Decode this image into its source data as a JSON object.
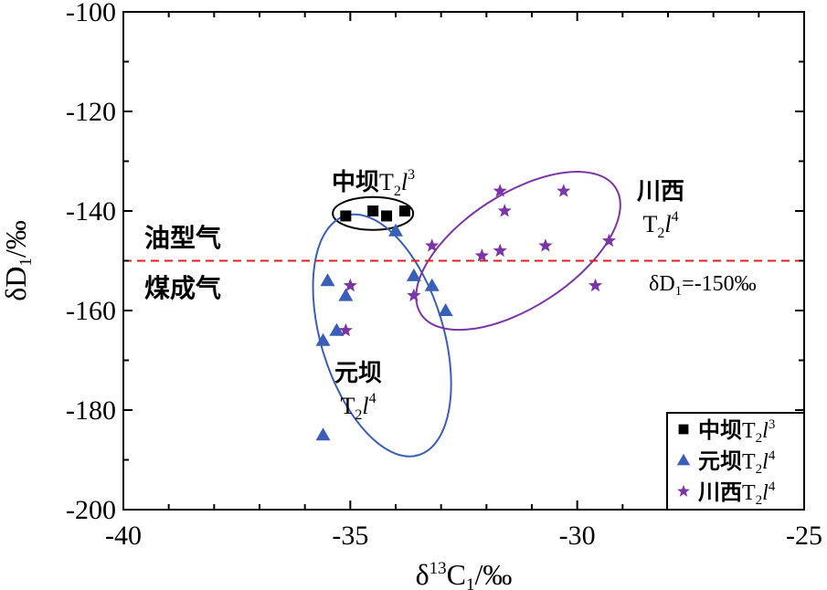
{
  "chart_data": {
    "type": "scatter",
    "xlabel": {
      "delta": "δ",
      "sup": "13",
      "main": "C",
      "sub": "1",
      "unit": "/‰"
    },
    "ylabel": {
      "delta": "δ",
      "main": "D",
      "sub": "1",
      "unit": "/‰"
    },
    "xlim": [
      -40,
      -25
    ],
    "ylim": [
      -200,
      -100
    ],
    "xticks": [
      "-40",
      "-35",
      "-30",
      "-25"
    ],
    "yticks": [
      "-200",
      "-180",
      "-160",
      "-140",
      "-120",
      "-100"
    ],
    "grid": false,
    "legend_position": "bottom-right",
    "series": [
      {
        "name": {
          "cn": "中坝",
          "t": "T",
          "sub": "2",
          "l": "l",
          "sup": "3"
        },
        "marker": "square",
        "color": "#000000",
        "points": [
          [
            -35.1,
            -141
          ],
          [
            -34.5,
            -140
          ],
          [
            -34.2,
            -141
          ],
          [
            -33.8,
            -140
          ]
        ]
      },
      {
        "name": {
          "cn": "元坝",
          "t": "T",
          "sub": "2",
          "l": "l",
          "sup": "4"
        },
        "marker": "triangle",
        "color": "#3a5fb8",
        "points": [
          [
            -35.5,
            -154
          ],
          [
            -35.1,
            -157
          ],
          [
            -35.3,
            -164
          ],
          [
            -35.6,
            -166
          ],
          [
            -35.6,
            -185
          ],
          [
            -34.0,
            -144
          ],
          [
            -33.6,
            -153
          ],
          [
            -33.2,
            -155
          ],
          [
            -32.9,
            -160
          ]
        ]
      },
      {
        "name": {
          "cn": "川西",
          "t": "T",
          "sub": "2",
          "l": "l",
          "sup": "4"
        },
        "marker": "star",
        "color": "#7b35a8",
        "points": [
          [
            -31.7,
            -136
          ],
          [
            -30.3,
            -136
          ],
          [
            -31.6,
            -140
          ],
          [
            -33.2,
            -147
          ],
          [
            -32.1,
            -149
          ],
          [
            -31.7,
            -148
          ],
          [
            -30.7,
            -147
          ],
          [
            -29.3,
            -146
          ],
          [
            -33.6,
            -157
          ],
          [
            -29.6,
            -155
          ],
          [
            -35.0,
            -155
          ],
          [
            -35.1,
            -164
          ]
        ]
      }
    ],
    "reference_line": {
      "y": -150,
      "color": "#e02020",
      "style": "dashed",
      "label": {
        "delta": "δ",
        "main": "D",
        "sub": "1",
        "rest": "=-150‰"
      }
    },
    "region_labels": {
      "above": "油型气",
      "below": "煤成气"
    },
    "group_labels": {
      "zhongba": {
        "cn": "中坝",
        "t": "T",
        "sub": "2",
        "l": "l",
        "sup": "3"
      },
      "yuanba": {
        "cn": "元坝",
        "t": "T",
        "sub": "2",
        "l": "l",
        "sup": "4"
      },
      "chuanxi": {
        "cn": "川西",
        "t": "T",
        "sub": "2",
        "l": "l",
        "sup": "4"
      }
    },
    "ellipses": [
      {
        "group": "zhongba",
        "color": "#000000",
        "cx": -34.5,
        "cy": -140.5,
        "rx_data": 1.2,
        "ry_data": 3.2,
        "rotate": 0
      },
      {
        "group": "yuanba",
        "color": "#3a5fb8",
        "cx": -34.3,
        "cy": -165,
        "rx_data": 3.2,
        "ry_data": 1.5,
        "rotate": 73
      },
      {
        "group": "chuanxi",
        "color": "#7b35a8",
        "cx": -31.3,
        "cy": -148,
        "rx_data": 3.5,
        "ry_data": 1.4,
        "rotate": -33
      }
    ]
  }
}
